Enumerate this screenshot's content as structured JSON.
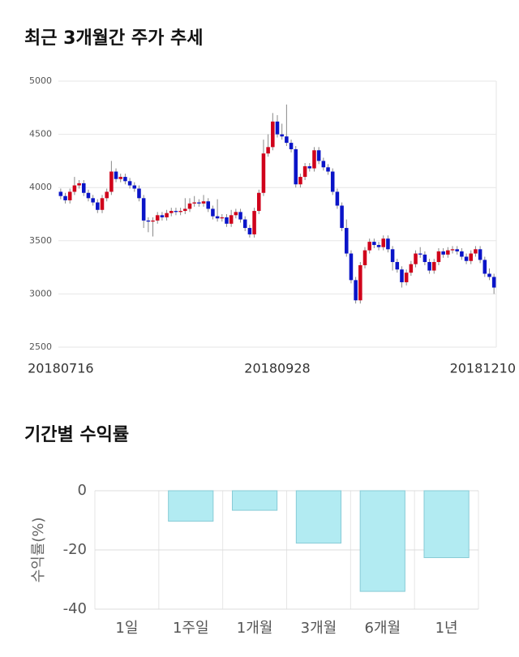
{
  "chart_data": [
    {
      "type": "candlestick",
      "title": "최근 3개월간 주가 추세",
      "categories": [
        "20180716",
        null,
        null,
        null,
        null,
        null,
        null,
        null,
        null,
        null,
        null,
        null,
        null,
        null,
        null,
        null,
        null,
        null,
        null,
        null,
        null,
        null,
        null,
        null,
        null,
        null,
        null,
        null,
        null,
        null,
        null,
        null,
        null,
        null,
        null,
        null,
        null,
        null,
        null,
        null,
        null,
        null,
        null,
        null,
        null,
        null,
        null,
        "20180928",
        null,
        null,
        null,
        null,
        null,
        null,
        null,
        null,
        null,
        null,
        null,
        null,
        null,
        null,
        null,
        null,
        null,
        null,
        null,
        null,
        null,
        null,
        null,
        null,
        null,
        null,
        null,
        null,
        null,
        null,
        null,
        null,
        null,
        null,
        null,
        null,
        null,
        null,
        null,
        null,
        null,
        null,
        null,
        null,
        null,
        null,
        "20181210"
      ],
      "open": [
        3960,
        3920,
        3880,
        3960,
        4020,
        4040,
        3950,
        3900,
        3860,
        3790,
        3900,
        3960,
        4150,
        4080,
        4100,
        4060,
        4020,
        3990,
        3900,
        3690,
        3680,
        3690,
        3740,
        3720,
        3760,
        3780,
        3770,
        3780,
        3800,
        3850,
        3860,
        3850,
        3870,
        3800,
        3730,
        3710,
        3720,
        3660,
        3740,
        3770,
        3700,
        3620,
        3560,
        3780,
        3950,
        4320,
        4380,
        4620,
        4500,
        4480,
        4420,
        4360,
        4030,
        4100,
        4200,
        4180,
        4350,
        4250,
        4190,
        4150,
        3960,
        3830,
        3620,
        3380,
        3130,
        2940,
        3270,
        3410,
        3490,
        3460,
        3440,
        3520,
        3420,
        3300,
        3230,
        3110,
        3200,
        3280,
        3380,
        3370,
        3300,
        3220,
        3300,
        3400,
        3370,
        3410,
        3420,
        3400,
        3350,
        3310,
        3380,
        3420,
        3320,
        3190,
        3160
      ],
      "high": [
        3990,
        3950,
        3990,
        4100,
        4070,
        4070,
        3980,
        3930,
        3890,
        3930,
        3990,
        4250,
        4180,
        4130,
        4130,
        4090,
        4050,
        4020,
        3930,
        3720,
        3720,
        3770,
        3770,
        3790,
        3810,
        3810,
        3810,
        3900,
        3900,
        3920,
        3890,
        3930,
        3900,
        3830,
        3890,
        3750,
        3750,
        3790,
        3800,
        3800,
        3730,
        3650,
        3810,
        3980,
        4450,
        4500,
        4700,
        4680,
        4600,
        4780,
        4450,
        4390,
        4130,
        4230,
        4230,
        4380,
        4380,
        4280,
        4220,
        4180,
        3990,
        3860,
        3700,
        3410,
        3160,
        3300,
        3440,
        3520,
        3520,
        3490,
        3550,
        3550,
        3450,
        3330,
        3260,
        3230,
        3310,
        3410,
        3440,
        3400,
        3330,
        3330,
        3430,
        3430,
        3440,
        3450,
        3450,
        3430,
        3380,
        3410,
        3450,
        3450,
        3350,
        3240,
        3190
      ],
      "low": [
        3890,
        3850,
        3850,
        3930,
        3990,
        3920,
        3870,
        3830,
        3760,
        3760,
        3870,
        3930,
        4050,
        4050,
        4030,
        3990,
        3960,
        3870,
        3620,
        3580,
        3540,
        3660,
        3690,
        3690,
        3730,
        3740,
        3740,
        3750,
        3770,
        3820,
        3820,
        3820,
        3770,
        3700,
        3680,
        3680,
        3630,
        3630,
        3710,
        3670,
        3590,
        3530,
        3530,
        3750,
        3920,
        4290,
        4350,
        4470,
        4450,
        4390,
        4330,
        4000,
        4000,
        4070,
        4150,
        4150,
        4220,
        4160,
        4120,
        3930,
        3800,
        3590,
        3350,
        3100,
        2910,
        2910,
        3240,
        3380,
        3430,
        3410,
        3410,
        3390,
        3220,
        3200,
        3060,
        3080,
        3170,
        3250,
        3340,
        3270,
        3190,
        3190,
        3270,
        3340,
        3340,
        3380,
        3370,
        3320,
        3280,
        3280,
        3350,
        3290,
        3160,
        3130,
        3000
      ],
      "close": [
        3920,
        3880,
        3960,
        4020,
        4040,
        3950,
        3900,
        3860,
        3790,
        3900,
        3960,
        4150,
        4080,
        4100,
        4060,
        4020,
        3990,
        3900,
        3690,
        3680,
        3690,
        3740,
        3720,
        3760,
        3780,
        3770,
        3780,
        3800,
        3850,
        3860,
        3850,
        3870,
        3800,
        3730,
        3710,
        3720,
        3660,
        3740,
        3770,
        3700,
        3620,
        3560,
        3780,
        3950,
        4320,
        4380,
        4620,
        4500,
        4480,
        4420,
        4360,
        4030,
        4100,
        4200,
        4180,
        4350,
        4250,
        4190,
        4150,
        3960,
        3830,
        3620,
        3380,
        3130,
        2940,
        3270,
        3410,
        3490,
        3460,
        3440,
        3520,
        3420,
        3300,
        3230,
        3110,
        3200,
        3280,
        3380,
        3370,
        3300,
        3220,
        3300,
        3400,
        3370,
        3410,
        3420,
        3400,
        3350,
        3310,
        3380,
        3420,
        3320,
        3190,
        3160,
        3060
      ],
      "up_color": "#d0021b",
      "down_color": "#0a14c8",
      "ylim": [
        2500,
        5000
      ],
      "yticks": [
        2500,
        3000,
        3500,
        4000,
        4500,
        5000
      ],
      "grid": true
    },
    {
      "type": "bar",
      "title": "기간별 수익률",
      "y_label": "수익률(%)",
      "categories": [
        "1일",
        "1주일",
        "1개월",
        "3개월",
        "6개월",
        "1년"
      ],
      "values": [
        0,
        -10.3,
        -6.6,
        -17.7,
        -34.0,
        -22.6
      ],
      "color": "#b2ebf2",
      "edge_color": "#87cbd6",
      "ylim": [
        -40,
        0
      ],
      "yticks": [
        -40,
        -20,
        0
      ],
      "grid": true
    }
  ]
}
